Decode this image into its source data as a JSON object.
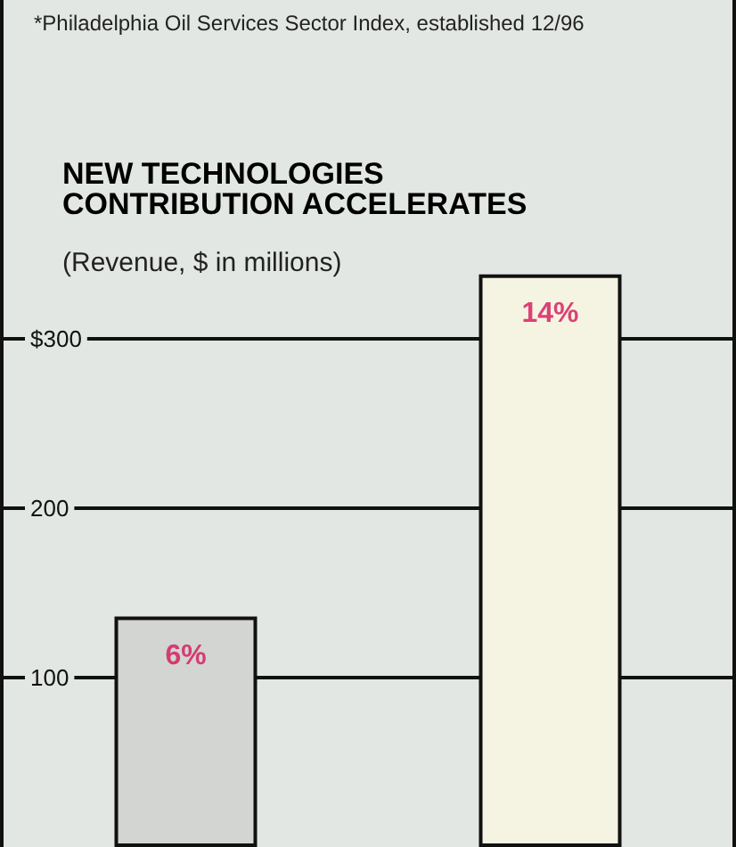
{
  "chart_data": {
    "type": "bar",
    "title": "NEW TECHNOLOGIES\nCONTRIBUTION ACCELERATES",
    "subtitle": "(Revenue, $ in millions)",
    "annotations": [
      "*Philadelphia Oil Services Sector Index, established 12/96",
      {
        "text": "6%",
        "y": 136
      },
      {
        "text": "14%",
        "y": 338
      }
    ],
    "categories": [
      null,
      null
    ],
    "values": [
      136,
      338
    ],
    "colors": [
      "#d3d5d2",
      "#f5f3e1"
    ],
    "ylim": [
      0,
      500
    ],
    "yticks": [
      100,
      200,
      {
        "value": 300,
        "label": "$300"
      }
    ],
    "grid": "y"
  }
}
